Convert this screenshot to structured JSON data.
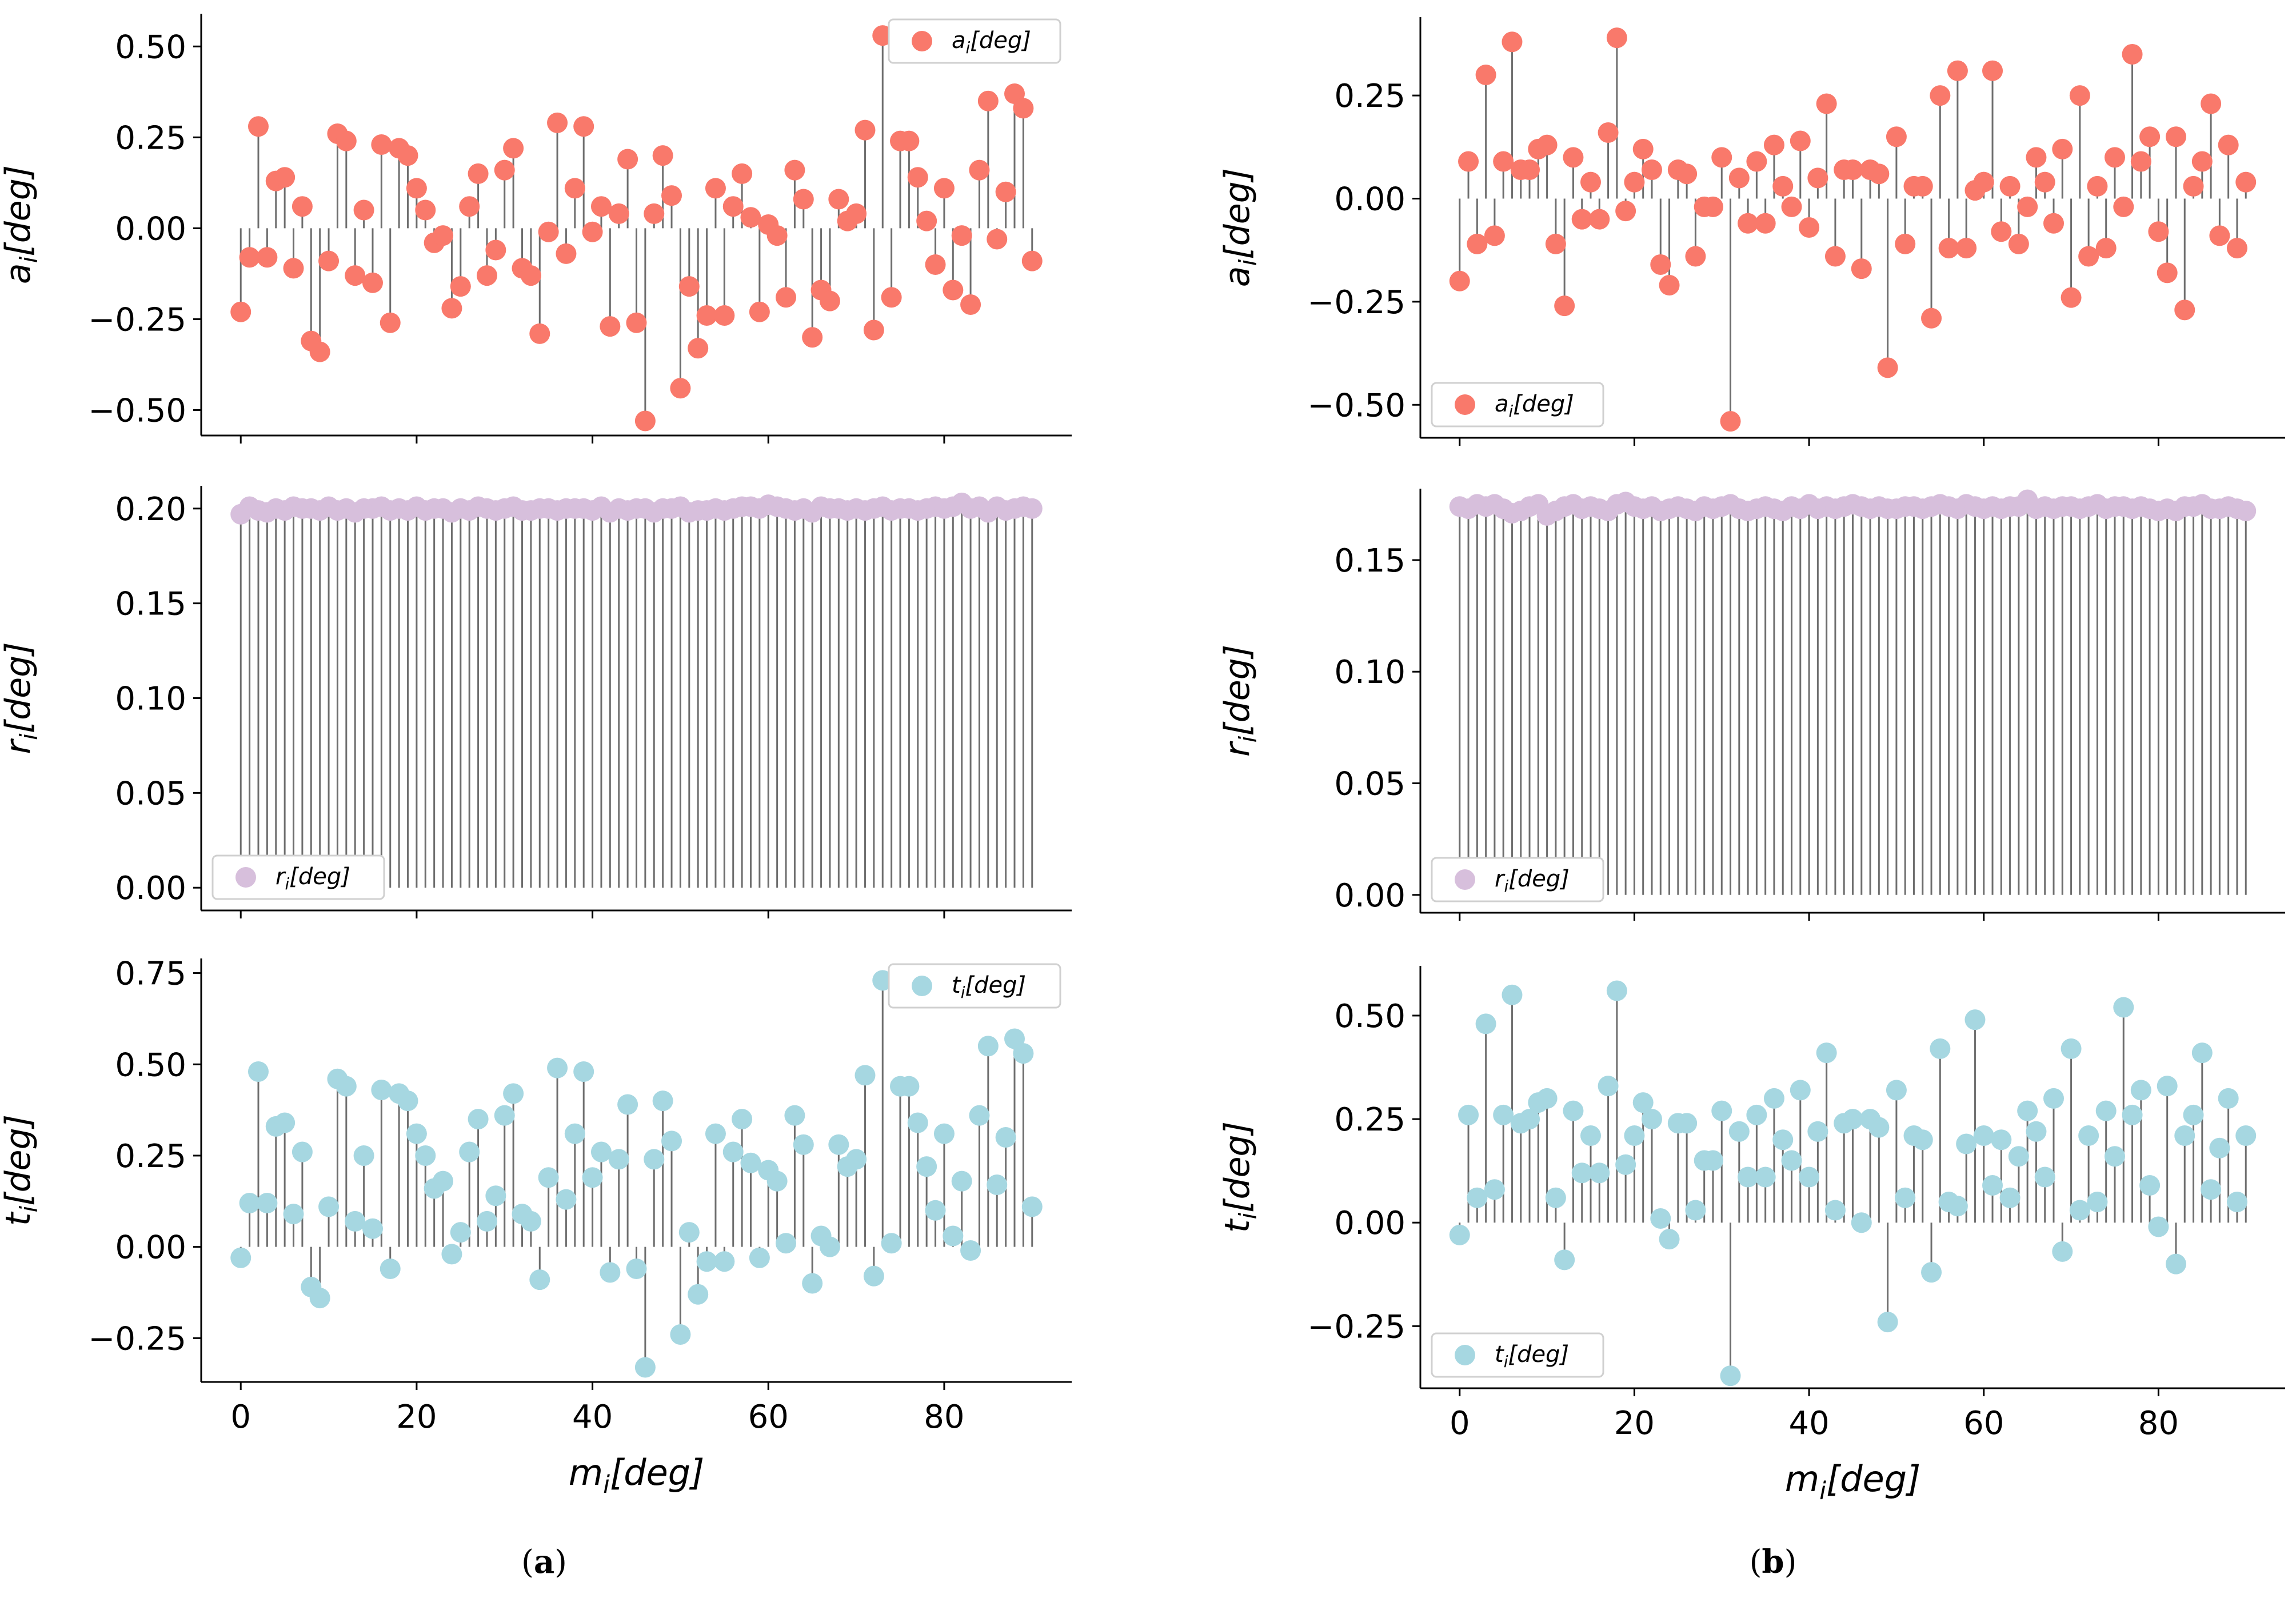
{
  "chart_data": [
    {
      "type": "stem",
      "panel": "a",
      "title": "",
      "xlabel": "",
      "ylabel": "a_i[deg]",
      "legend": {
        "label": "a_i[deg]",
        "position": "top-right"
      },
      "color": "#f9796b",
      "xlim": [
        -4.5,
        94.5
      ],
      "ylim": [
        -0.57,
        0.59
      ],
      "xticks": [
        0,
        20,
        40,
        60,
        80
      ],
      "yticks": [
        -0.5,
        -0.25,
        0.0,
        0.25,
        0.5
      ],
      "ytick_labels": [
        "−0.50",
        "−0.25",
        "0.00",
        "0.25",
        "0.50"
      ],
      "baseline": 0,
      "x": [
        0,
        1,
        2,
        3,
        4,
        5,
        6,
        7,
        8,
        9,
        10,
        11,
        12,
        13,
        14,
        15,
        16,
        17,
        18,
        19,
        20,
        21,
        22,
        23,
        24,
        25,
        26,
        27,
        28,
        29,
        30,
        31,
        32,
        33,
        34,
        35,
        36,
        37,
        38,
        39,
        40,
        41,
        42,
        43,
        44,
        45,
        46,
        47,
        48,
        49,
        50,
        51,
        52,
        53,
        54,
        55,
        56,
        57,
        58,
        59,
        60,
        61,
        62,
        63,
        64,
        65,
        66,
        67,
        68,
        69,
        70,
        71,
        72,
        73,
        74,
        75,
        76,
        77,
        78,
        79,
        80,
        81,
        82,
        83,
        84,
        85,
        86,
        87,
        88,
        89,
        90
      ],
      "y": [
        -0.23,
        -0.08,
        0.28,
        -0.08,
        0.13,
        0.14,
        -0.11,
        0.06,
        -0.31,
        -0.34,
        -0.09,
        0.26,
        0.24,
        -0.13,
        0.05,
        -0.15,
        0.23,
        -0.26,
        0.22,
        0.2,
        0.11,
        0.05,
        -0.04,
        -0.02,
        -0.22,
        -0.16,
        0.06,
        0.15,
        -0.13,
        -0.06,
        0.16,
        0.22,
        -0.11,
        -0.13,
        -0.29,
        -0.01,
        0.29,
        -0.07,
        0.11,
        0.28,
        -0.01,
        0.06,
        -0.27,
        0.04,
        0.19,
        -0.26,
        -0.53,
        0.04,
        0.2,
        0.09,
        -0.44,
        -0.16,
        -0.33,
        -0.24,
        0.11,
        -0.24,
        0.06,
        0.15,
        0.03,
        -0.23,
        0.01,
        -0.02,
        -0.19,
        0.16,
        0.08,
        -0.3,
        -0.17,
        -0.2,
        0.08,
        0.02,
        0.04,
        0.27,
        -0.28,
        0.53,
        -0.19,
        0.24,
        0.24,
        0.14,
        0.02,
        -0.1,
        0.11,
        -0.17,
        -0.02,
        -0.21,
        0.16,
        0.35,
        -0.03,
        0.1,
        0.37,
        0.33,
        -0.09
      ]
    },
    {
      "type": "stem",
      "panel": "a",
      "title": "",
      "xlabel": "",
      "ylabel": "r_i[deg]",
      "legend": {
        "label": "r_i[deg]",
        "position": "bottom-left"
      },
      "color": "#d7bfdc",
      "xlim": [
        -4.5,
        94.5
      ],
      "ylim": [
        -0.012,
        0.212
      ],
      "xticks": [
        0,
        20,
        40,
        60,
        80
      ],
      "yticks": [
        0.0,
        0.05,
        0.1,
        0.15,
        0.2
      ],
      "ytick_labels": [
        "0.00",
        "0.05",
        "0.10",
        "0.15",
        "0.20"
      ],
      "baseline": 0,
      "x": [
        0,
        1,
        2,
        3,
        4,
        5,
        6,
        7,
        8,
        9,
        10,
        11,
        12,
        13,
        14,
        15,
        16,
        17,
        18,
        19,
        20,
        21,
        22,
        23,
        24,
        25,
        26,
        27,
        28,
        29,
        30,
        31,
        32,
        33,
        34,
        35,
        36,
        37,
        38,
        39,
        40,
        41,
        42,
        43,
        44,
        45,
        46,
        47,
        48,
        49,
        50,
        51,
        52,
        53,
        54,
        55,
        56,
        57,
        58,
        59,
        60,
        61,
        62,
        63,
        64,
        65,
        66,
        67,
        68,
        69,
        70,
        71,
        72,
        73,
        74,
        75,
        76,
        77,
        78,
        79,
        80,
        81,
        82,
        83,
        84,
        85,
        86,
        87,
        88,
        89,
        90
      ],
      "y": [
        0.197,
        0.201,
        0.199,
        0.198,
        0.2,
        0.199,
        0.201,
        0.2,
        0.2,
        0.199,
        0.201,
        0.199,
        0.2,
        0.198,
        0.2,
        0.2,
        0.201,
        0.199,
        0.2,
        0.199,
        0.201,
        0.199,
        0.2,
        0.2,
        0.198,
        0.2,
        0.199,
        0.201,
        0.2,
        0.199,
        0.2,
        0.201,
        0.199,
        0.199,
        0.2,
        0.2,
        0.199,
        0.2,
        0.2,
        0.2,
        0.199,
        0.201,
        0.198,
        0.2,
        0.199,
        0.2,
        0.2,
        0.198,
        0.2,
        0.2,
        0.201,
        0.198,
        0.199,
        0.199,
        0.2,
        0.199,
        0.2,
        0.201,
        0.201,
        0.2,
        0.202,
        0.201,
        0.2,
        0.199,
        0.2,
        0.198,
        0.201,
        0.2,
        0.2,
        0.199,
        0.2,
        0.199,
        0.2,
        0.201,
        0.199,
        0.2,
        0.2,
        0.199,
        0.2,
        0.201,
        0.2,
        0.201,
        0.203,
        0.2,
        0.201,
        0.198,
        0.201,
        0.199,
        0.2,
        0.201,
        0.2
      ]
    },
    {
      "type": "stem",
      "panel": "a",
      "title": "",
      "xlabel": "m_i[deg]",
      "ylabel": "t_i[deg]",
      "legend": {
        "label": "t_i[deg]",
        "position": "top-right"
      },
      "color": "#a6d7e1",
      "xlim": [
        -4.5,
        94.5
      ],
      "ylim": [
        -0.37,
        0.79
      ],
      "xticks": [
        0,
        20,
        40,
        60,
        80
      ],
      "yticks": [
        -0.25,
        0.0,
        0.25,
        0.5,
        0.75
      ],
      "ytick_labels": [
        "−0.25",
        "0.00",
        "0.25",
        "0.50",
        "0.75"
      ],
      "baseline": 0,
      "x": [
        0,
        1,
        2,
        3,
        4,
        5,
        6,
        7,
        8,
        9,
        10,
        11,
        12,
        13,
        14,
        15,
        16,
        17,
        18,
        19,
        20,
        21,
        22,
        23,
        24,
        25,
        26,
        27,
        28,
        29,
        30,
        31,
        32,
        33,
        34,
        35,
        36,
        37,
        38,
        39,
        40,
        41,
        42,
        43,
        44,
        45,
        46,
        47,
        48,
        49,
        50,
        51,
        52,
        53,
        54,
        55,
        56,
        57,
        58,
        59,
        60,
        61,
        62,
        63,
        64,
        65,
        66,
        67,
        68,
        69,
        70,
        71,
        72,
        73,
        74,
        75,
        76,
        77,
        78,
        79,
        80,
        81,
        82,
        83,
        84,
        85,
        86,
        87,
        88,
        89,
        90
      ],
      "y": [
        -0.03,
        0.12,
        0.48,
        0.12,
        0.33,
        0.34,
        0.09,
        0.26,
        -0.11,
        -0.14,
        0.11,
        0.46,
        0.44,
        0.07,
        0.25,
        0.05,
        0.43,
        -0.06,
        0.42,
        0.4,
        0.31,
        0.25,
        0.16,
        0.18,
        -0.02,
        0.04,
        0.26,
        0.35,
        0.07,
        0.14,
        0.36,
        0.42,
        0.09,
        0.07,
        -0.09,
        0.19,
        0.49,
        0.13,
        0.31,
        0.48,
        0.19,
        0.26,
        -0.07,
        0.24,
        0.39,
        -0.06,
        -0.33,
        0.24,
        0.4,
        0.29,
        -0.24,
        0.04,
        -0.13,
        -0.04,
        0.31,
        -0.04,
        0.26,
        0.35,
        0.23,
        -0.03,
        0.21,
        0.18,
        0.01,
        0.36,
        0.28,
        -0.1,
        0.03,
        0.0,
        0.28,
        0.22,
        0.24,
        0.47,
        -0.08,
        0.73,
        0.01,
        0.44,
        0.44,
        0.34,
        0.22,
        0.1,
        0.31,
        0.03,
        0.18,
        -0.01,
        0.36,
        0.55,
        0.17,
        0.3,
        0.57,
        0.53,
        0.11
      ]
    },
    {
      "type": "stem",
      "panel": "b",
      "title": "",
      "xlabel": "",
      "ylabel": "a_i[deg]",
      "legend": {
        "label": "a_i[deg]",
        "position": "bottom-left"
      },
      "color": "#f9796b",
      "xlim": [
        -4.5,
        94.5
      ],
      "ylim": [
        -0.58,
        0.44
      ],
      "xticks": [
        0,
        20,
        40,
        60,
        80
      ],
      "yticks": [
        -0.5,
        -0.25,
        0.0,
        0.25
      ],
      "ytick_labels": [
        "−0.50",
        "−0.25",
        "0.00",
        "0.25"
      ],
      "baseline": 0,
      "x": [
        0,
        1,
        2,
        3,
        4,
        5,
        6,
        7,
        8,
        9,
        10,
        11,
        12,
        13,
        14,
        15,
        16,
        17,
        18,
        19,
        20,
        21,
        22,
        23,
        24,
        25,
        26,
        27,
        28,
        29,
        30,
        31,
        32,
        33,
        34,
        35,
        36,
        37,
        38,
        39,
        40,
        41,
        42,
        43,
        44,
        45,
        46,
        47,
        48,
        49,
        50,
        51,
        52,
        53,
        54,
        55,
        56,
        57,
        58,
        59,
        60,
        61,
        62,
        63,
        64,
        65,
        66,
        67,
        68,
        69,
        70,
        71,
        72,
        73,
        74,
        75,
        76,
        77,
        78,
        79,
        80,
        81,
        82,
        83,
        84,
        85,
        86,
        87,
        88,
        89,
        90
      ],
      "y": [
        -0.2,
        0.09,
        -0.11,
        0.3,
        -0.09,
        0.09,
        0.38,
        0.07,
        0.07,
        0.12,
        0.13,
        -0.11,
        -0.26,
        0.1,
        -0.05,
        0.04,
        -0.05,
        0.16,
        0.39,
        -0.03,
        0.04,
        0.12,
        0.07,
        -0.16,
        -0.21,
        0.07,
        0.06,
        -0.14,
        -0.02,
        -0.02,
        0.1,
        -0.54,
        0.05,
        -0.06,
        0.09,
        -0.06,
        0.13,
        0.03,
        -0.02,
        0.14,
        -0.07,
        0.05,
        0.23,
        -0.14,
        0.07,
        0.07,
        -0.17,
        0.07,
        0.06,
        -0.41,
        0.15,
        -0.11,
        0.03,
        0.03,
        -0.29,
        0.25,
        -0.12,
        0.31,
        -0.12,
        0.02,
        0.04,
        0.31,
        -0.08,
        0.03,
        -0.11,
        -0.02,
        0.1,
        0.04,
        -0.06,
        0.12,
        -0.24,
        0.25,
        -0.14,
        0.03,
        -0.12,
        0.1,
        -0.02,
        0.35,
        0.09,
        0.15,
        -0.08,
        -0.18,
        0.15,
        -0.27,
        0.03,
        0.09,
        0.23,
        -0.09,
        0.13,
        -0.12,
        0.04
      ]
    },
    {
      "type": "stem",
      "panel": "b",
      "title": "",
      "xlabel": "",
      "ylabel": "r_i[deg]",
      "legend": {
        "label": "r_i[deg]",
        "position": "bottom-left"
      },
      "color": "#d7bfdc",
      "xlim": [
        -4.5,
        94.5
      ],
      "ylim": [
        -0.008,
        0.182
      ],
      "xticks": [
        0,
        20,
        40,
        60,
        80
      ],
      "yticks": [
        0.0,
        0.05,
        0.1,
        0.15
      ],
      "ytick_labels": [
        "0.00",
        "0.05",
        "0.10",
        "0.15"
      ],
      "baseline": 0,
      "x": [
        0,
        1,
        2,
        3,
        4,
        5,
        6,
        7,
        8,
        9,
        10,
        11,
        12,
        13,
        14,
        15,
        16,
        17,
        18,
        19,
        20,
        21,
        22,
        23,
        24,
        25,
        26,
        27,
        28,
        29,
        30,
        31,
        32,
        33,
        34,
        35,
        36,
        37,
        38,
        39,
        40,
        41,
        42,
        43,
        44,
        45,
        46,
        47,
        48,
        49,
        50,
        51,
        52,
        53,
        54,
        55,
        56,
        57,
        58,
        59,
        60,
        61,
        62,
        63,
        64,
        65,
        66,
        67,
        68,
        69,
        70,
        71,
        72,
        73,
        74,
        75,
        76,
        77,
        78,
        79,
        80,
        81,
        82,
        83,
        84,
        85,
        86,
        87,
        88,
        89,
        90
      ],
      "y": [
        0.174,
        0.173,
        0.175,
        0.174,
        0.175,
        0.173,
        0.171,
        0.172,
        0.174,
        0.175,
        0.17,
        0.172,
        0.174,
        0.175,
        0.173,
        0.174,
        0.173,
        0.172,
        0.175,
        0.176,
        0.174,
        0.173,
        0.174,
        0.172,
        0.173,
        0.174,
        0.173,
        0.172,
        0.174,
        0.173,
        0.174,
        0.175,
        0.173,
        0.172,
        0.173,
        0.174,
        0.173,
        0.172,
        0.174,
        0.173,
        0.175,
        0.173,
        0.174,
        0.173,
        0.174,
        0.175,
        0.174,
        0.173,
        0.174,
        0.173,
        0.173,
        0.174,
        0.174,
        0.173,
        0.174,
        0.175,
        0.174,
        0.173,
        0.175,
        0.174,
        0.173,
        0.174,
        0.173,
        0.174,
        0.174,
        0.177,
        0.173,
        0.174,
        0.173,
        0.174,
        0.174,
        0.173,
        0.174,
        0.175,
        0.173,
        0.174,
        0.174,
        0.173,
        0.174,
        0.173,
        0.172,
        0.173,
        0.172,
        0.174,
        0.174,
        0.175,
        0.173,
        0.173,
        0.174,
        0.173,
        0.172
      ]
    },
    {
      "type": "stem",
      "panel": "b",
      "title": "",
      "xlabel": "m_i[deg]",
      "ylabel": "t_i[deg]",
      "legend": {
        "label": "t_i[deg]",
        "position": "bottom-left"
      },
      "color": "#a6d7e1",
      "xlim": [
        -4.5,
        94.5
      ],
      "ylim": [
        -0.4,
        0.62
      ],
      "xticks": [
        0,
        20,
        40,
        60,
        80
      ],
      "yticks": [
        -0.25,
        0.0,
        0.25,
        0.5
      ],
      "ytick_labels": [
        "−0.25",
        "0.00",
        "0.25",
        "0.50"
      ],
      "baseline": 0,
      "x": [
        0,
        1,
        2,
        3,
        4,
        5,
        6,
        7,
        8,
        9,
        10,
        11,
        12,
        13,
        14,
        15,
        16,
        17,
        18,
        19,
        20,
        21,
        22,
        23,
        24,
        25,
        26,
        27,
        28,
        29,
        30,
        31,
        32,
        33,
        34,
        35,
        36,
        37,
        38,
        39,
        40,
        41,
        42,
        43,
        44,
        45,
        46,
        47,
        48,
        49,
        50,
        51,
        52,
        53,
        54,
        55,
        56,
        57,
        58,
        59,
        60,
        61,
        62,
        63,
        64,
        65,
        66,
        67,
        68,
        69,
        70,
        71,
        72,
        73,
        74,
        75,
        76,
        77,
        78,
        79,
        80,
        81,
        82,
        83,
        84,
        85,
        86,
        87,
        88,
        89,
        90
      ],
      "y": [
        -0.03,
        0.26,
        0.06,
        0.48,
        0.08,
        0.26,
        0.55,
        0.24,
        0.25,
        0.29,
        0.3,
        0.06,
        -0.09,
        0.27,
        0.12,
        0.21,
        0.12,
        0.33,
        0.56,
        0.14,
        0.21,
        0.29,
        0.25,
        0.01,
        -0.04,
        0.24,
        0.24,
        0.03,
        0.15,
        0.15,
        0.27,
        -0.37,
        0.22,
        0.11,
        0.26,
        0.11,
        0.3,
        0.2,
        0.15,
        0.32,
        0.11,
        0.22,
        0.41,
        0.03,
        0.24,
        0.25,
        -0.0,
        0.25,
        0.23,
        -0.24,
        0.32,
        0.06,
        0.21,
        0.2,
        -0.12,
        0.42,
        0.05,
        0.04,
        0.19,
        0.49,
        0.21,
        0.09,
        0.2,
        0.06,
        0.16,
        0.27,
        0.22,
        0.11,
        0.3,
        -0.07,
        0.42,
        0.03,
        0.21,
        0.05,
        0.27,
        0.16,
        0.52,
        0.26,
        0.32,
        0.09,
        -0.01,
        0.33,
        -0.1,
        0.21,
        0.26,
        0.41,
        0.08,
        0.18,
        0.3,
        0.05,
        0.21
      ]
    }
  ],
  "captions": {
    "left": "a",
    "right": "b"
  }
}
